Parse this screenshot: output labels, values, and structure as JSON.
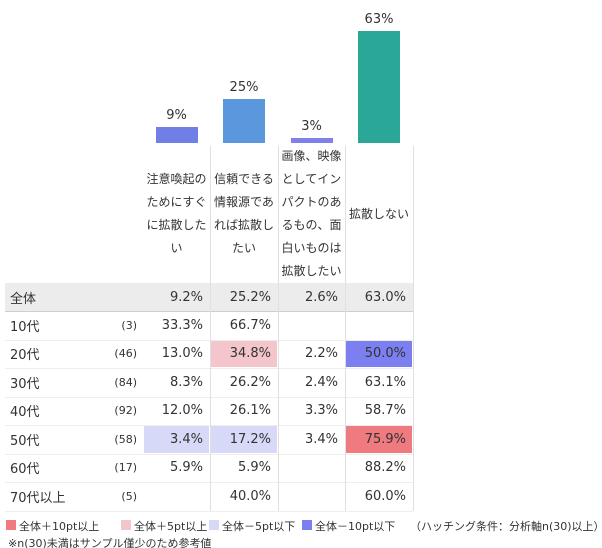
{
  "chart_data": {
    "type": "bar",
    "categories": [
      "注意喚起のためにすぐに拡散したい",
      "信頼できる情報源であれば拡散したい",
      "画像、映像としてインパクトのあるもの、面白いものは拡散したい",
      "拡散しない"
    ],
    "values": [
      9,
      25,
      3,
      63
    ],
    "value_labels": [
      "9%",
      "25%",
      "3%",
      "63%"
    ],
    "colors": [
      "#6f7fe6",
      "#5b97dc",
      "#8080ea",
      "#2aa797"
    ]
  },
  "table": {
    "rows": [
      {
        "label": "全体",
        "n": null,
        "cells": [
          "9.2%",
          "25.2%",
          "2.6%",
          "63.0%"
        ],
        "highlights": [
          null,
          null,
          null,
          null
        ]
      },
      {
        "label": "10代",
        "n": "(3)",
        "cells": [
          "33.3%",
          "66.7%",
          null,
          null
        ],
        "highlights": [
          null,
          null,
          null,
          null
        ]
      },
      {
        "label": "20代",
        "n": "(46)",
        "cells": [
          "13.0%",
          "34.8%",
          "2.2%",
          "50.0%"
        ],
        "highlights": [
          null,
          1,
          null,
          3
        ]
      },
      {
        "label": "30代",
        "n": "(84)",
        "cells": [
          "8.3%",
          "26.2%",
          "2.4%",
          "63.1%"
        ],
        "highlights": [
          null,
          null,
          null,
          null
        ]
      },
      {
        "label": "40代",
        "n": "(92)",
        "cells": [
          "12.0%",
          "26.1%",
          "3.3%",
          "58.7%"
        ],
        "highlights": [
          null,
          null,
          null,
          null
        ]
      },
      {
        "label": "50代",
        "n": "(58)",
        "cells": [
          "3.4%",
          "17.2%",
          "3.4%",
          "75.9%"
        ],
        "highlights": [
          2,
          2,
          null,
          0
        ]
      },
      {
        "label": "60代",
        "n": "(17)",
        "cells": [
          "5.9%",
          "5.9%",
          null,
          "88.2%"
        ],
        "highlights": [
          null,
          null,
          null,
          null
        ]
      },
      {
        "label": "70代以上",
        "n": "(5)",
        "cells": [
          null,
          "40.0%",
          null,
          "60.0%"
        ],
        "highlights": [
          null,
          null,
          null,
          null
        ]
      }
    ]
  },
  "legend": {
    "items": [
      {
        "label": "全体＋10pt以上",
        "color": "#ef7a80"
      },
      {
        "label": "全体＋5pt以上",
        "color": "#f4c6cc"
      },
      {
        "label": "全体－5pt以下",
        "color": "#d6d9f7"
      },
      {
        "label": "全体－10pt以下",
        "color": "#7b7ff0"
      }
    ],
    "note": "（ハッチング条件：分析軸n(30)以上）"
  },
  "footnote": "※n(30)未満はサンプル僅少のため参考値"
}
